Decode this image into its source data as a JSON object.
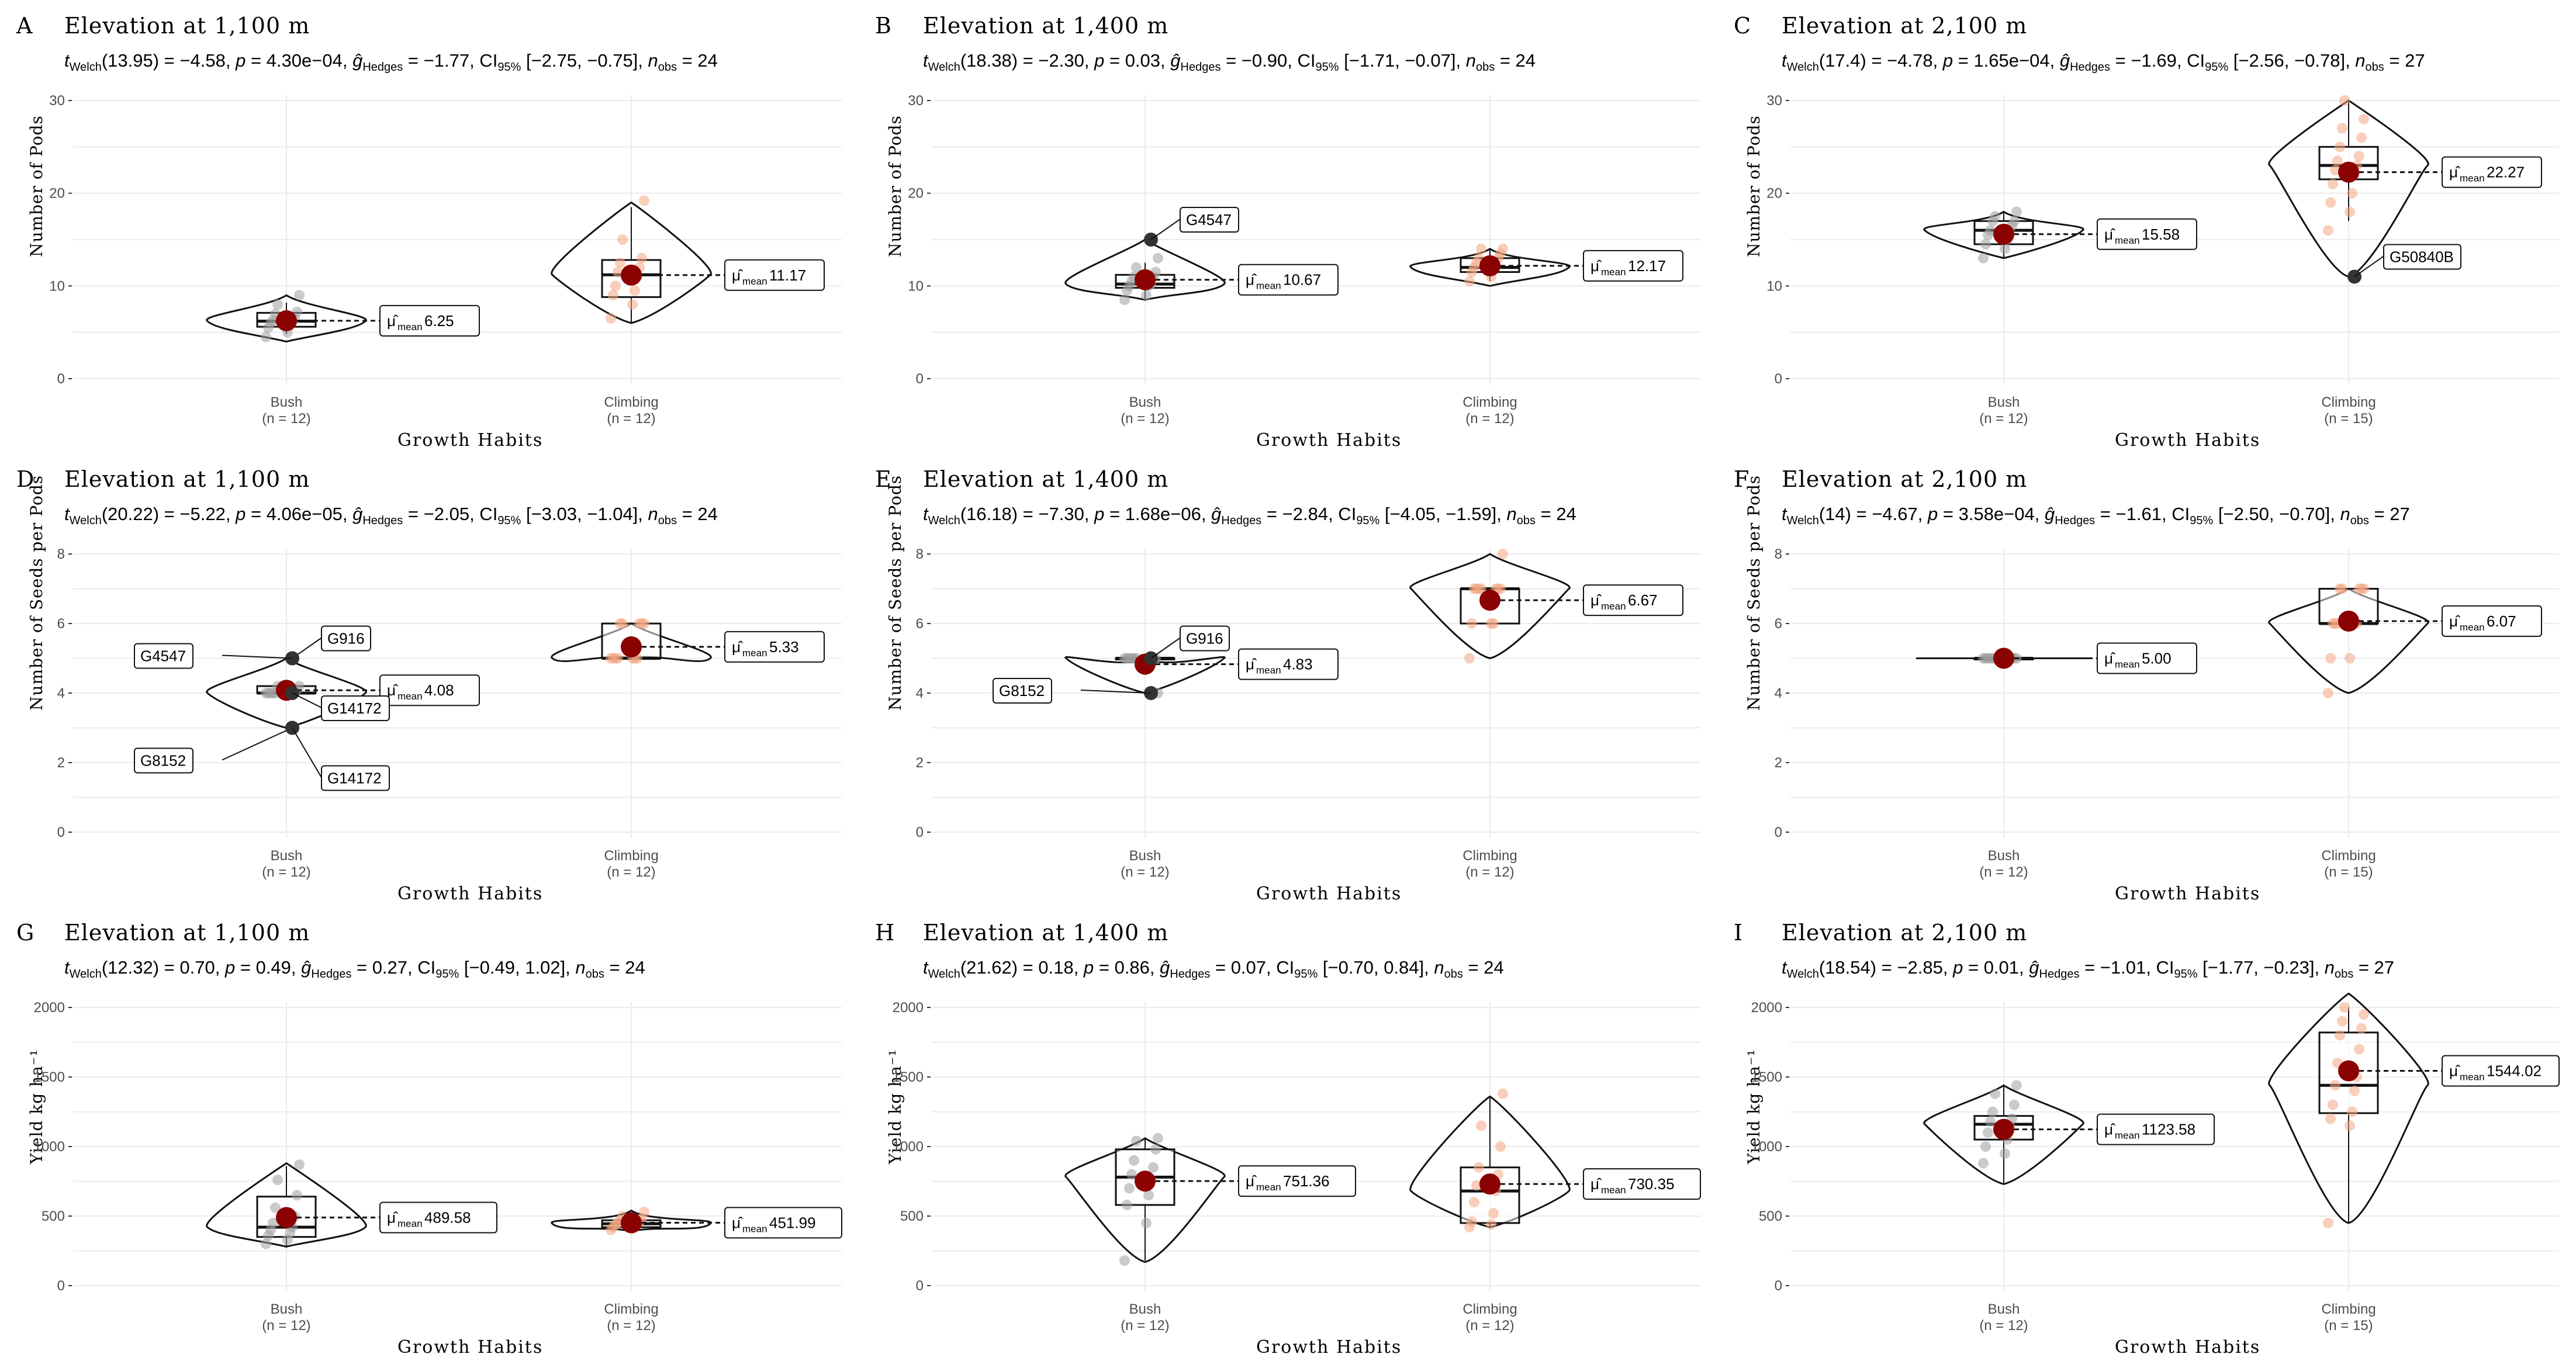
{
  "chart_data": [
    {
      "letter": "A",
      "title": "Elevation at 1,100 m",
      "stats": {
        "t_df": "13.95",
        "t": "−4.58",
        "p": "4.30e−04",
        "g": "−1.77",
        "ci": "[−2.75, −0.75]",
        "nobs": "24"
      },
      "ylabel": "Number of Pods",
      "xlabel": "Growth Habits",
      "ylim": [
        0,
        30
      ],
      "yticks": [
        0,
        10,
        20,
        30
      ],
      "groups": [
        {
          "name": "Bush",
          "n": "(n = 12)",
          "mean": 6.25,
          "mean_label": "6.25",
          "box": [
            4.8,
            5.6,
            6.2,
            7.1,
            8.2
          ],
          "violin": [
            4,
            9
          ],
          "points": [
            4.5,
            5,
            5.5,
            5.8,
            6,
            6.2,
            6.3,
            6.5,
            7,
            7.2,
            8,
            9
          ]
        },
        {
          "name": "Climbing",
          "n": "(n = 12)",
          "mean": 11.17,
          "mean_label": "11.17",
          "box": [
            6,
            8.8,
            11.2,
            12.8,
            18.5
          ],
          "violin": [
            6,
            19
          ],
          "points": [
            6.5,
            8,
            9,
            9.5,
            10,
            11,
            11.5,
            12,
            12.5,
            13,
            15,
            19.2
          ]
        }
      ],
      "outliers": []
    },
    {
      "letter": "B",
      "title": "Elevation at 1,400 m",
      "stats": {
        "t_df": "18.38",
        "t": "−2.30",
        "p": "0.03",
        "g": "−0.90",
        "ci": "[−1.71, −0.07]",
        "nobs": "24"
      },
      "ylabel": "Number of Pods",
      "xlabel": "Growth Habits",
      "ylim": [
        0,
        30
      ],
      "yticks": [
        0,
        10,
        20,
        30
      ],
      "groups": [
        {
          "name": "Bush",
          "n": "(n = 12)",
          "mean": 10.67,
          "mean_label": "10.67",
          "box": [
            8.5,
            9.8,
            10.2,
            11.2,
            12.5
          ],
          "violin": [
            8.5,
            15
          ],
          "points": [
            8.5,
            9,
            9.5,
            10,
            10,
            10.2,
            10.5,
            11,
            11,
            11.5,
            12,
            13
          ]
        },
        {
          "name": "Climbing",
          "n": "(n = 12)",
          "mean": 12.17,
          "mean_label": "12.17",
          "box": [
            10.5,
            11.5,
            12,
            13,
            14
          ],
          "violin": [
            10,
            14
          ],
          "points": [
            10.5,
            11,
            11.5,
            12,
            12,
            12.2,
            12.5,
            13,
            13,
            13.5,
            14,
            14
          ]
        }
      ],
      "outliers": [
        {
          "group": 0,
          "value": 15,
          "label": "G4547"
        }
      ]
    },
    {
      "letter": "C",
      "title": "Elevation at 2,100 m",
      "stats": {
        "t_df": "17.4",
        "t": "−4.78",
        "p": "1.65e−04",
        "g": "−1.69",
        "ci": "[−2.56, −0.78]",
        "nobs": "27"
      },
      "ylabel": "Number of Pods",
      "xlabel": "Growth Habits",
      "ylim": [
        0,
        30
      ],
      "yticks": [
        0,
        10,
        20,
        30
      ],
      "groups": [
        {
          "name": "Bush",
          "n": "(n = 12)",
          "mean": 15.58,
          "mean_label": "15.58",
          "box": [
            13,
            14.5,
            16,
            17,
            18
          ],
          "violin": [
            13,
            18
          ],
          "points": [
            13,
            14,
            14.5,
            15,
            15.5,
            16,
            16,
            16.5,
            17,
            17,
            17.5,
            18
          ]
        },
        {
          "name": "Climbing",
          "n": "(n = 15)",
          "mean": 22.27,
          "mean_label": "22.27",
          "box": [
            17,
            21.5,
            23,
            25,
            30
          ],
          "violin": [
            11,
            30
          ],
          "points": [
            16,
            18,
            19,
            20,
            21,
            22,
            22.5,
            23,
            23.5,
            24,
            25,
            26,
            27,
            28,
            30
          ]
        }
      ],
      "outliers": [
        {
          "group": 1,
          "value": 11,
          "label": "G50840B"
        }
      ]
    },
    {
      "letter": "D",
      "title": "Elevation at 1,100 m",
      "stats": {
        "t_df": "20.22",
        "t": "−5.22",
        "p": "4.06e−05",
        "g": "−2.05",
        "ci": "[−3.03, −1.04]",
        "nobs": "24"
      },
      "ylabel": "Number of Seeds per Pods",
      "xlabel": "Growth Habits",
      "ylim": [
        0,
        8
      ],
      "yticks": [
        0,
        2,
        4,
        6,
        8
      ],
      "groups": [
        {
          "name": "Bush",
          "n": "(n = 12)",
          "mean": 4.08,
          "mean_label": "4.08",
          "box": [
            4,
            4,
            4,
            4.2,
            4.2
          ],
          "violin": [
            3,
            5
          ],
          "points": [
            4,
            4,
            4,
            4,
            4,
            4,
            4,
            4,
            4,
            4.1,
            4.2,
            4.2
          ]
        },
        {
          "name": "Climbing",
          "n": "(n = 12)",
          "mean": 5.33,
          "mean_label": "5.33",
          "box": [
            5,
            5,
            5,
            6,
            6
          ],
          "violin": [
            5,
            6
          ],
          "points": [
            5,
            5,
            5,
            5,
            5,
            5,
            5,
            6,
            6,
            6,
            6,
            6
          ]
        }
      ],
      "outliers": [
        {
          "group": 0,
          "value": 5,
          "label": "G916"
        },
        {
          "group": 0,
          "value": 5,
          "label": "G4547"
        },
        {
          "group": 0,
          "value": 4,
          "label": "G14172"
        },
        {
          "group": 0,
          "value": 3,
          "label": "G8152"
        },
        {
          "group": 0,
          "value": 3,
          "label": "G14172"
        }
      ]
    },
    {
      "letter": "E",
      "title": "Elevation at 1,400 m",
      "stats": {
        "t_df": "16.18",
        "t": "−7.30",
        "p": "1.68e−06",
        "g": "−2.84",
        "ci": "[−4.05, −1.59]",
        "nobs": "24"
      },
      "ylabel": "Number of Seeds per Pods",
      "xlabel": "Growth Habits",
      "ylim": [
        0,
        8
      ],
      "yticks": [
        0,
        2,
        4,
        6,
        8
      ],
      "groups": [
        {
          "name": "Bush",
          "n": "(n = 12)",
          "mean": 4.83,
          "mean_label": "4.83",
          "box": [
            5,
            5,
            5,
            5,
            5
          ],
          "violin": [
            4,
            5
          ],
          "points": [
            5,
            5,
            5,
            5,
            5,
            5,
            5,
            5,
            5,
            5,
            5,
            4
          ]
        },
        {
          "name": "Climbing",
          "n": "(n = 12)",
          "mean": 6.67,
          "mean_label": "6.67",
          "box": [
            6,
            6,
            7,
            7,
            7
          ],
          "violin": [
            5,
            8
          ],
          "points": [
            5,
            6,
            6,
            6,
            7,
            7,
            7,
            7,
            7,
            7,
            7,
            8
          ]
        }
      ],
      "outliers": [
        {
          "group": 0,
          "value": 5,
          "label": "G916"
        },
        {
          "group": 0,
          "value": 4,
          "label": "G8152"
        }
      ]
    },
    {
      "letter": "F",
      "title": "Elevation at 2,100 m",
      "stats": {
        "t_df": "14",
        "t": "−4.67",
        "p": "3.58e−04",
        "g": "−1.61",
        "ci": "[−2.50, −0.70]",
        "nobs": "27"
      },
      "ylabel": "Number of Seeds per Pods",
      "xlabel": "Growth Habits",
      "ylim": [
        0,
        8
      ],
      "yticks": [
        0,
        2,
        4,
        6,
        8
      ],
      "groups": [
        {
          "name": "Bush",
          "n": "(n = 12)",
          "mean": 5.0,
          "mean_label": "5.00",
          "box": [
            5,
            5,
            5,
            5,
            5
          ],
          "violin": [
            5,
            5
          ],
          "points": [
            5,
            5,
            5,
            5,
            5,
            5,
            5,
            5,
            5,
            5,
            5,
            5
          ]
        },
        {
          "name": "Climbing",
          "n": "(n = 15)",
          "mean": 6.07,
          "mean_label": "6.07",
          "box": [
            6,
            6,
            6,
            7,
            7
          ],
          "violin": [
            4,
            7
          ],
          "points": [
            4,
            5,
            5,
            6,
            6,
            6,
            6,
            6,
            6,
            7,
            7,
            7,
            7,
            7,
            6
          ]
        }
      ],
      "outliers": []
    },
    {
      "letter": "G",
      "title": "Elevation at 1,100 m",
      "stats": {
        "t_df": "12.32",
        "t": "0.70",
        "p": "0.49",
        "g": "0.27",
        "ci": "[−0.49, 1.02]",
        "nobs": "24"
      },
      "ylabel": "Yield kg ha⁻¹",
      "xlabel": "Growth Habits",
      "ylim": [
        0,
        2000
      ],
      "yticks": [
        0,
        500,
        1000,
        1500,
        2000
      ],
      "groups": [
        {
          "name": "Bush",
          "n": "(n = 12)",
          "mean": 489.58,
          "mean_label": "489.58",
          "box": [
            280,
            350,
            420,
            640,
            860
          ],
          "violin": [
            280,
            880
          ],
          "points": [
            300,
            330,
            360,
            380,
            400,
            420,
            450,
            500,
            560,
            650,
            760,
            870
          ]
        },
        {
          "name": "Climbing",
          "n": "(n = 12)",
          "mean": 451.99,
          "mean_label": "451.99",
          "box": [
            400,
            420,
            445,
            470,
            520
          ],
          "violin": [
            390,
            540
          ],
          "points": [
            400,
            410,
            420,
            430,
            440,
            445,
            450,
            460,
            470,
            480,
            500,
            530
          ]
        }
      ],
      "outliers": []
    },
    {
      "letter": "H",
      "title": "Elevation at 1,400 m",
      "stats": {
        "t_df": "21.62",
        "t": "0.18",
        "p": "0.86",
        "g": "0.07",
        "ci": "[−0.70, 0.84]",
        "nobs": "24"
      },
      "ylabel": "Yield kg ha⁻¹",
      "xlabel": "Growth Habits",
      "ylim": [
        0,
        2000
      ],
      "yticks": [
        0,
        500,
        1000,
        1500,
        2000
      ],
      "groups": [
        {
          "name": "Bush",
          "n": "(n = 12)",
          "mean": 751.36,
          "mean_label": "751.36",
          "box": [
            180,
            580,
            780,
            980,
            1060
          ],
          "violin": [
            170,
            1060
          ],
          "points": [
            180,
            450,
            580,
            650,
            700,
            760,
            800,
            850,
            900,
            980,
            1040,
            1060
          ]
        },
        {
          "name": "Climbing",
          "n": "(n = 12)",
          "mean": 730.35,
          "mean_label": "730.35",
          "box": [
            420,
            450,
            680,
            850,
            1350
          ],
          "violin": [
            420,
            1360
          ],
          "points": [
            420,
            440,
            460,
            520,
            600,
            680,
            720,
            800,
            850,
            1000,
            1150,
            1380
          ]
        }
      ],
      "outliers": []
    },
    {
      "letter": "I",
      "title": "Elevation at 2,100 m",
      "stats": {
        "t_df": "18.54",
        "t": "−2.85",
        "p": "0.01",
        "g": "−1.01",
        "ci": "[−1.77, −0.23]",
        "nobs": "27"
      },
      "ylabel": "Yield kg ha⁻¹",
      "xlabel": "Growth Habits",
      "ylim": [
        0,
        2000
      ],
      "yticks": [
        0,
        500,
        1000,
        1500,
        2000
      ],
      "groups": [
        {
          "name": "Bush",
          "n": "(n = 12)",
          "mean": 1123.58,
          "mean_label": "1123.58",
          "box": [
            730,
            1050,
            1160,
            1220,
            1440
          ],
          "violin": [
            730,
            1440
          ],
          "points": [
            880,
            950,
            1000,
            1050,
            1100,
            1150,
            1180,
            1200,
            1250,
            1300,
            1380,
            1440
          ]
        },
        {
          "name": "Climbing",
          "n": "(n = 15)",
          "mean": 1544.02,
          "mean_label": "1544.02",
          "box": [
            450,
            1240,
            1440,
            1820,
            2000
          ],
          "violin": [
            450,
            2100
          ],
          "points": [
            450,
            1150,
            1200,
            1250,
            1300,
            1400,
            1440,
            1500,
            1600,
            1700,
            1800,
            1850,
            1900,
            1950,
            2000
          ]
        }
      ],
      "outliers": []
    }
  ]
}
